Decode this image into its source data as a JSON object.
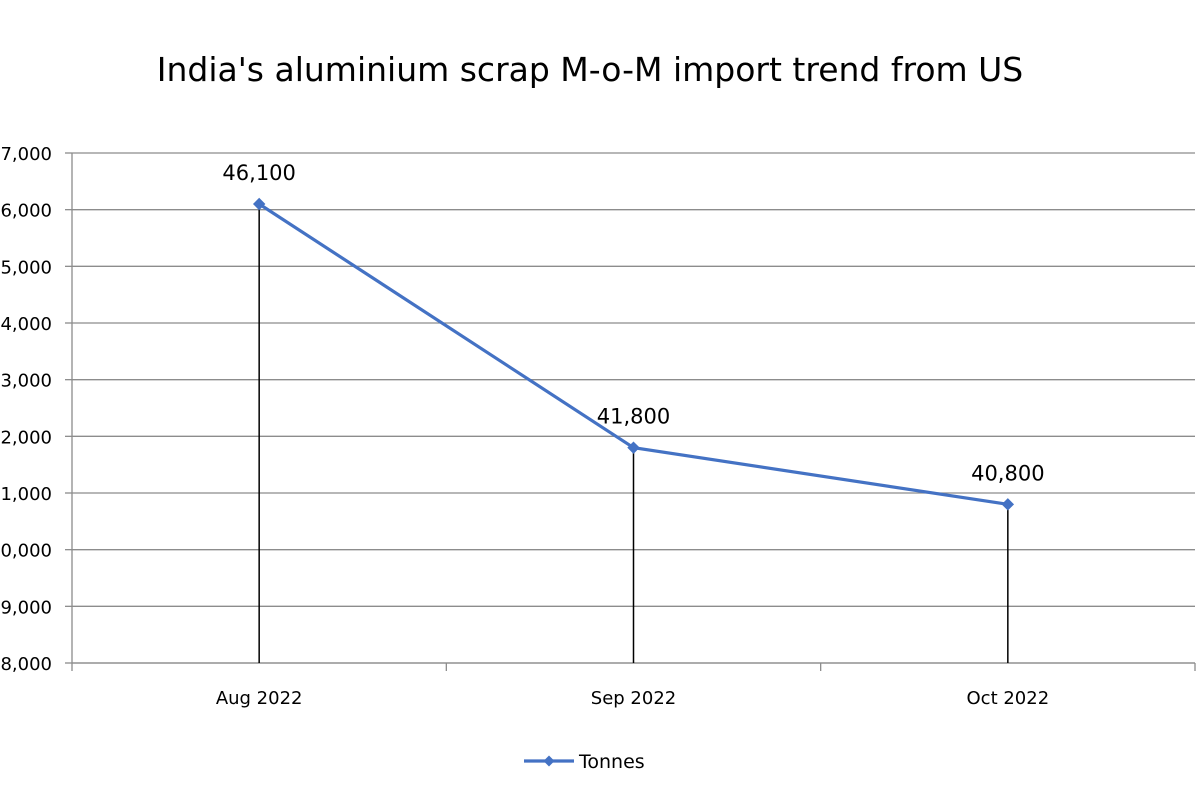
{
  "chart_data": {
    "type": "line",
    "title": "India's aluminium scrap M-o-M import trend from US",
    "categories": [
      "Aug 2022",
      "Sep 2022",
      "Oct 2022"
    ],
    "series": [
      {
        "name": "Tonnes",
        "values": [
          46100,
          41800,
          40800
        ],
        "data_labels": [
          "46,100",
          "41,800",
          "40,800"
        ],
        "color": "#4472C4"
      }
    ],
    "ylim": [
      38000,
      47000
    ],
    "y_ticks": [
      "8,000",
      "9,000",
      "0,000",
      "1,000",
      "2,000",
      "3,000",
      "4,000",
      "5,000",
      "6,000",
      "7,000"
    ],
    "grid": true,
    "drop_lines": true,
    "legend_position": "bottom"
  }
}
